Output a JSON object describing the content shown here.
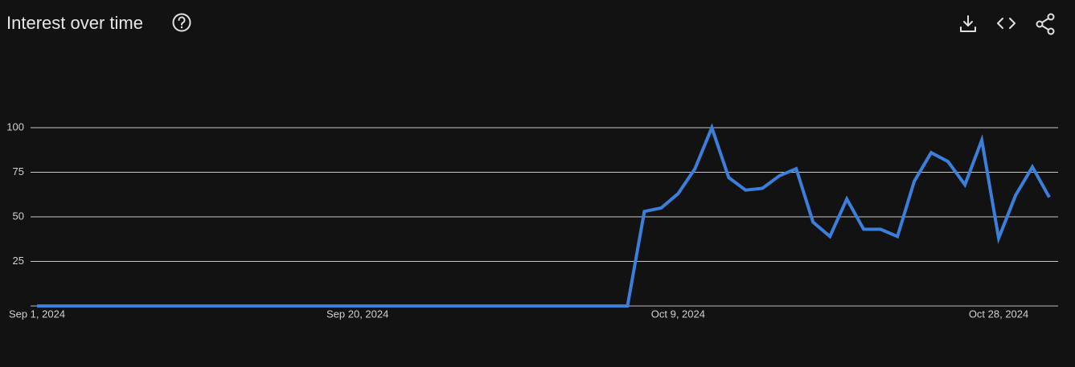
{
  "chart_data": {
    "type": "line",
    "title": "Interest over time",
    "x": [
      "2024-09-01",
      "2024-09-02",
      "2024-09-03",
      "2024-09-04",
      "2024-09-05",
      "2024-09-06",
      "2024-09-07",
      "2024-09-08",
      "2024-09-09",
      "2024-09-10",
      "2024-09-11",
      "2024-09-12",
      "2024-09-13",
      "2024-09-14",
      "2024-09-15",
      "2024-09-16",
      "2024-09-17",
      "2024-09-18",
      "2024-09-19",
      "2024-09-20",
      "2024-09-21",
      "2024-09-22",
      "2024-09-23",
      "2024-09-24",
      "2024-09-25",
      "2024-09-26",
      "2024-09-27",
      "2024-09-28",
      "2024-09-29",
      "2024-09-30",
      "2024-10-01",
      "2024-10-02",
      "2024-10-03",
      "2024-10-04",
      "2024-10-05",
      "2024-10-06",
      "2024-10-07",
      "2024-10-08",
      "2024-10-09",
      "2024-10-10",
      "2024-10-11",
      "2024-10-12",
      "2024-10-13",
      "2024-10-14",
      "2024-10-15",
      "2024-10-16",
      "2024-10-17",
      "2024-10-18",
      "2024-10-19",
      "2024-10-20",
      "2024-10-21",
      "2024-10-22",
      "2024-10-23",
      "2024-10-24",
      "2024-10-25",
      "2024-10-26",
      "2024-10-27",
      "2024-10-28",
      "2024-10-29",
      "2024-10-30",
      "2024-10-31"
    ],
    "values": [
      0,
      0,
      0,
      0,
      0,
      0,
      0,
      0,
      0,
      0,
      0,
      0,
      0,
      0,
      0,
      0,
      0,
      0,
      0,
      0,
      0,
      0,
      0,
      0,
      0,
      0,
      0,
      0,
      0,
      0,
      0,
      0,
      0,
      0,
      0,
      0,
      53,
      55,
      63,
      77,
      100,
      72,
      65,
      66,
      73,
      77,
      47,
      39,
      60,
      43,
      43,
      39,
      70,
      86,
      81,
      68,
      93,
      38,
      62,
      78,
      61
    ],
    "color": "#3b7fdc",
    "xlim": [
      "2024-09-01",
      "2024-10-31"
    ],
    "xticks": [
      {
        "value": "2024-09-01",
        "label": "Sep 1, 2024"
      },
      {
        "value": "2024-09-20",
        "label": "Sep 20, 2024"
      },
      {
        "value": "2024-10-09",
        "label": "Oct 9, 2024"
      },
      {
        "value": "2024-10-28",
        "label": "Oct 28, 2024"
      }
    ],
    "ylim": [
      0,
      100
    ],
    "yticks": [
      25,
      50,
      75,
      100
    ],
    "grid": true
  }
}
